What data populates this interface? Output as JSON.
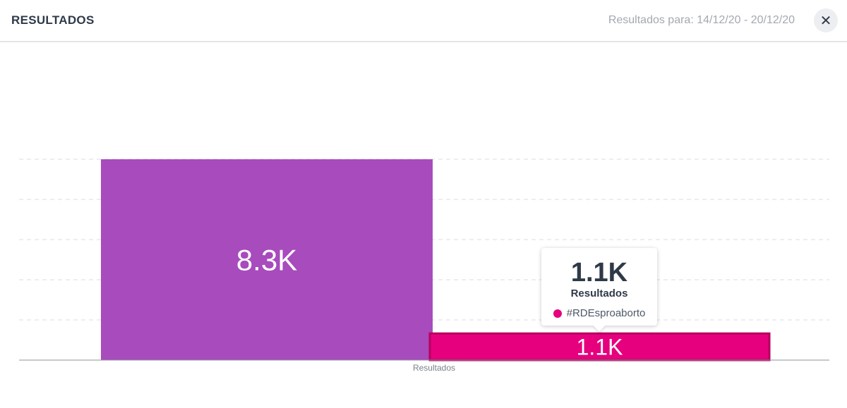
{
  "header": {
    "title": "RESULTADOS",
    "date_range": "Resultados para: 14/12/20 - 20/12/20",
    "close_symbol": "✕"
  },
  "tooltip": {
    "value": "1.1K",
    "label": "Resultados",
    "series_name": "#RDEsproaborto",
    "series_color": "#e6007e"
  },
  "chart_data": {
    "type": "bar",
    "categories": [
      "Resultados"
    ],
    "series": [
      {
        "values": [
          8300
        ],
        "value_label": "8.3K",
        "color": "#a84bbd"
      },
      {
        "name": "#RDEsproaborto",
        "values": [
          1100
        ],
        "value_label": "1.1K",
        "color": "#e6007e"
      }
    ],
    "xlabel": "Resultados",
    "ylabel": "",
    "ylim": [
      0,
      8300
    ],
    "grid": true,
    "grid_style": "dashed",
    "legend": "none"
  }
}
